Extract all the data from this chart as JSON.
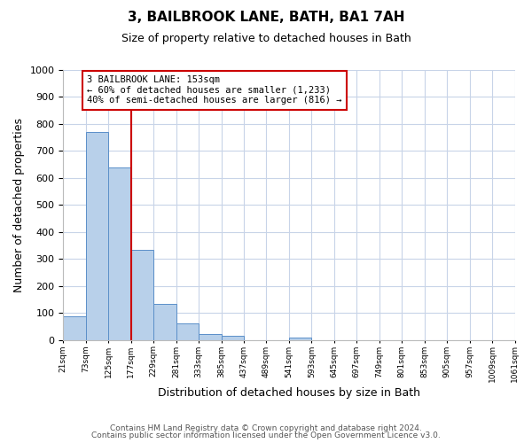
{
  "title": "3, BAILBROOK LANE, BATH, BA1 7AH",
  "subtitle": "Size of property relative to detached houses in Bath",
  "xlabel": "Distribution of detached houses by size in Bath",
  "ylabel": "Number of detached properties",
  "bar_values": [
    87,
    770,
    640,
    333,
    133,
    60,
    22,
    17,
    0,
    0,
    10,
    0,
    0,
    0,
    0,
    0,
    0,
    0,
    0,
    0
  ],
  "bar_labels": [
    "21sqm",
    "73sqm",
    "125sqm",
    "177sqm",
    "229sqm",
    "281sqm",
    "333sqm",
    "385sqm",
    "437sqm",
    "489sqm",
    "541sqm",
    "593sqm",
    "645sqm",
    "697sqm",
    "749sqm",
    "801sqm",
    "853sqm",
    "905sqm",
    "957sqm",
    "1009sqm",
    "1061sqm"
  ],
  "bar_color": "#b8d0ea",
  "bar_edge_color": "#5b8fc9",
  "property_line_x": 2.5,
  "property_line_color": "#cc0000",
  "annotation_title": "3 BAILBROOK LANE: 153sqm",
  "annotation_line1": "← 60% of detached houses are smaller (1,233)",
  "annotation_line2": "40% of semi-detached houses are larger (816) →",
  "annotation_box_color": "#cc0000",
  "ylim": [
    0,
    1000
  ],
  "yticks": [
    0,
    100,
    200,
    300,
    400,
    500,
    600,
    700,
    800,
    900,
    1000
  ],
  "footer_line1": "Contains HM Land Registry data © Crown copyright and database right 2024.",
  "footer_line2": "Contains public sector information licensed under the Open Government Licence v3.0.",
  "bg_color": "#ffffff",
  "grid_color": "#c8d4e8"
}
